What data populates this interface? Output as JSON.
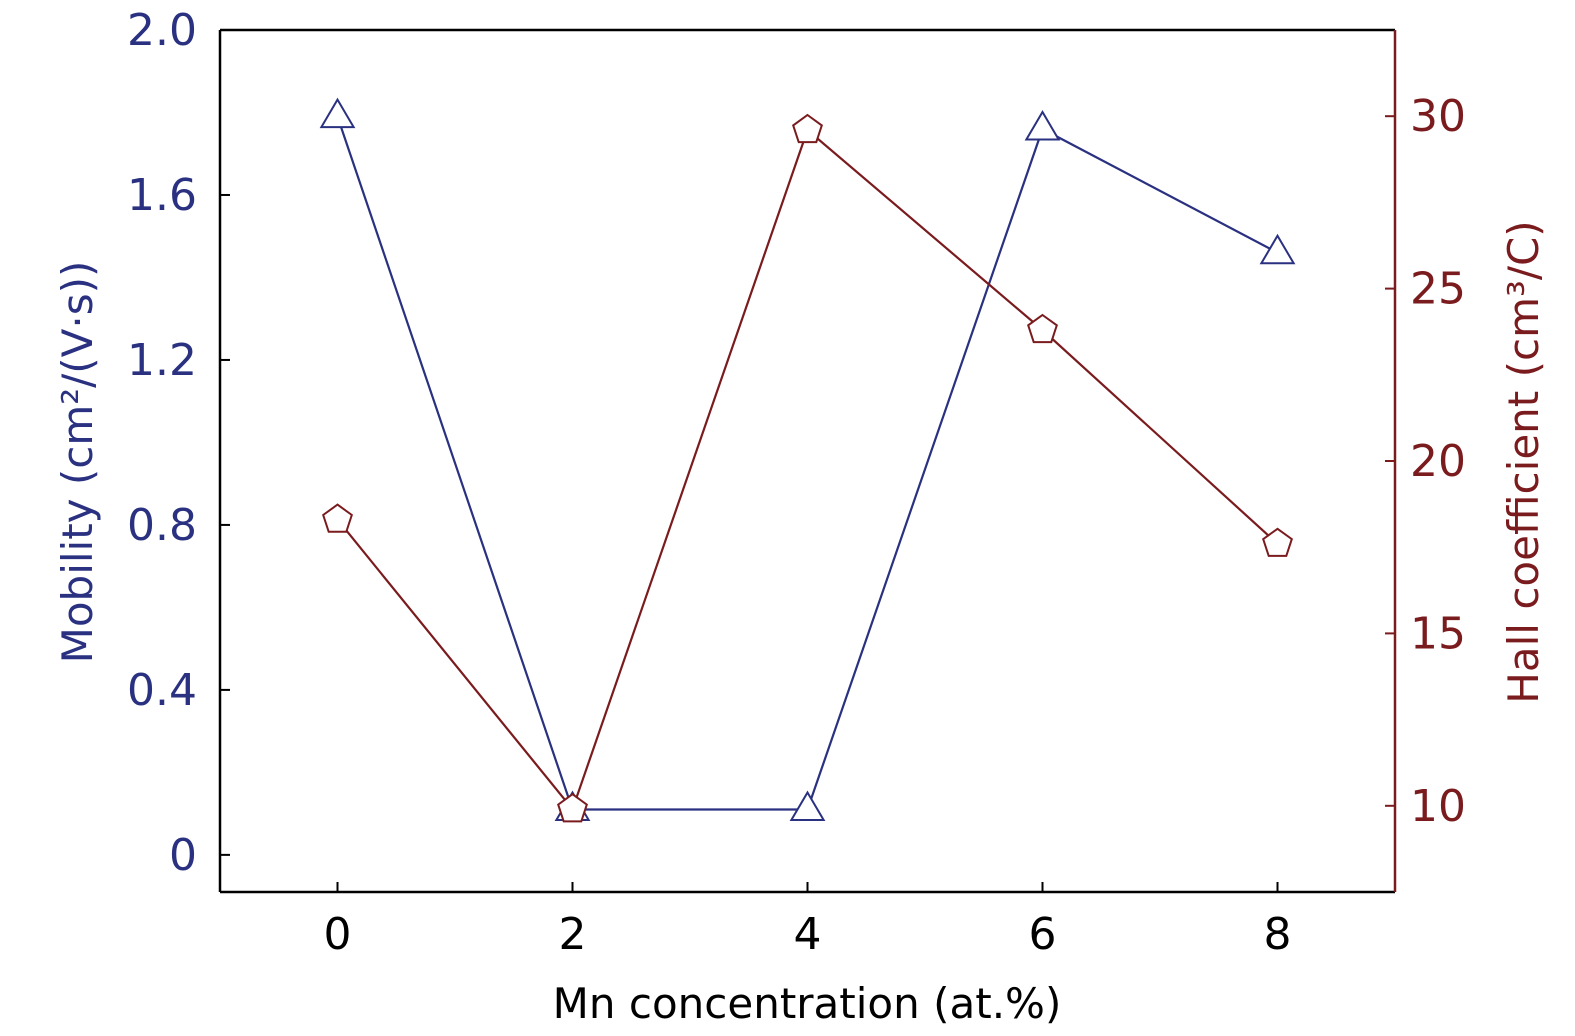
{
  "chart_data": {
    "type": "line",
    "x": [
      0,
      2,
      4,
      6,
      8
    ],
    "xlim": [
      -1,
      9
    ],
    "x_ticks": [
      "0",
      "2",
      "4",
      "6",
      "8"
    ],
    "xlabel": "Mn concentration (at.%)",
    "ylabel_left": "Mobility (cm²/(V·s))",
    "ylabel_right": "Hall coefficient (cm³/C)",
    "ylim_left": [
      -0.09,
      2.0
    ],
    "ylim_right": [
      7.5,
      32.5
    ],
    "y_ticks_left": [
      "0",
      "0.4",
      "0.8",
      "1.2",
      "1.6",
      "2.0"
    ],
    "y_ticks_right": [
      "10",
      "15",
      "20",
      "25",
      "30"
    ],
    "grid": false,
    "series": [
      {
        "axis": "left",
        "marker": "triangle",
        "color": "#2a3180",
        "values": [
          1.79,
          0.11,
          0.11,
          1.76,
          1.46
        ]
      },
      {
        "axis": "right",
        "marker": "pentagon",
        "color": "#7a1b1e",
        "values": [
          18.3,
          9.9,
          29.6,
          23.8,
          17.6
        ]
      }
    ],
    "colors": {
      "left_axis": "#2a3180",
      "right_axis": "#7a1b1e",
      "frame": "#000000"
    }
  }
}
